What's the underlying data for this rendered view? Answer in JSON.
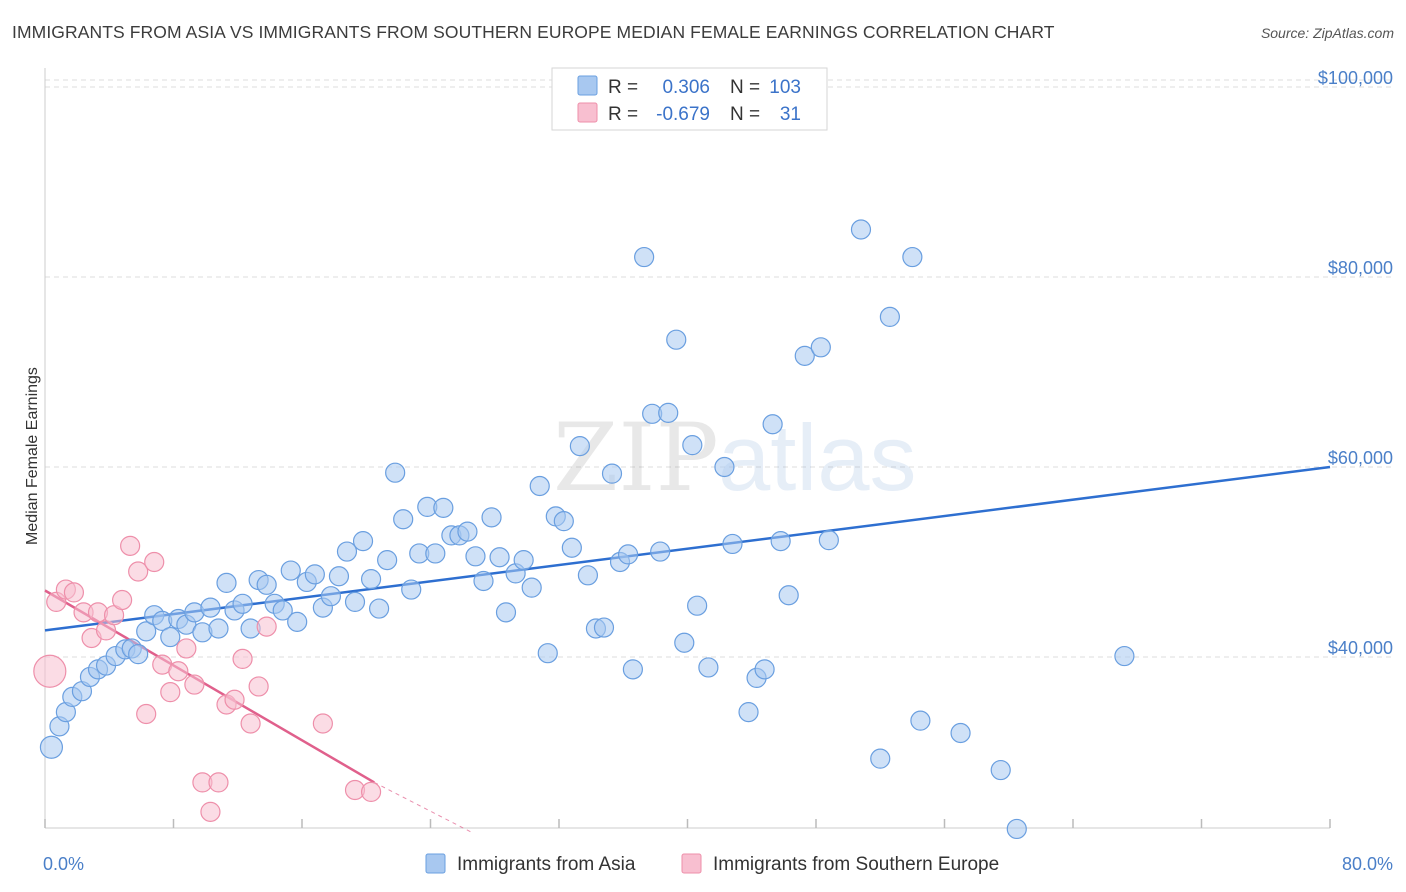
{
  "title": "IMMIGRANTS FROM ASIA VS IMMIGRANTS FROM SOUTHERN EUROPE MEDIAN FEMALE EARNINGS CORRELATION CHART",
  "source": "Source: ZipAtlas.com",
  "watermark": {
    "part1": "ZIP",
    "part2": "atlas"
  },
  "colors": {
    "asia_fill": "#a8c8f0",
    "asia_stroke": "#6a9fe0",
    "asia_line": "#2e6fd0",
    "europe_fill": "#f8bfd0",
    "europe_stroke": "#ee8faa",
    "europe_line": "#e0608c",
    "label_blue": "#4a7fc8",
    "grid": "#dddddd"
  },
  "legend": {
    "items": [
      {
        "r_label": "R =",
        "r_value": "0.306",
        "n_label": "N =",
        "n_value": "103"
      },
      {
        "r_label": "R =",
        "r_value": "-0.679",
        "n_label": "N =",
        "n_value": "31"
      }
    ]
  },
  "chart_data": {
    "type": "scatter",
    "title": "IMMIGRANTS FROM ASIA VS IMMIGRANTS FROM SOUTHERN EUROPE MEDIAN FEMALE EARNINGS CORRELATION CHART",
    "xlabel": "",
    "ylabel": "Median Female Earnings",
    "xlim": [
      0,
      80
    ],
    "ylim": [
      22000,
      102000
    ],
    "x_tick_labels": [
      "0.0%",
      "80.0%"
    ],
    "y_ticks": [
      40000,
      60000,
      80000,
      100000
    ],
    "y_tick_labels": [
      "$40,000",
      "$60,000",
      "$80,000",
      "$100,000"
    ],
    "grid": true,
    "series": [
      {
        "name": "Immigrants from Asia",
        "r": 0.306,
        "n": 103,
        "trend": {
          "x": [
            0,
            80
          ],
          "y": [
            42800,
            60000
          ]
        },
        "points": [
          [
            0.4,
            30500
          ],
          [
            0.9,
            32700
          ],
          [
            1.3,
            34200
          ],
          [
            1.7,
            35800
          ],
          [
            2.3,
            36400
          ],
          [
            2.8,
            37900
          ],
          [
            3.3,
            38700
          ],
          [
            3.8,
            39100
          ],
          [
            4.4,
            40100
          ],
          [
            5.0,
            40800
          ],
          [
            5.4,
            40900
          ],
          [
            5.8,
            40300
          ],
          [
            6.3,
            42700
          ],
          [
            6.8,
            44400
          ],
          [
            7.3,
            43800
          ],
          [
            7.8,
            42100
          ],
          [
            8.3,
            44000
          ],
          [
            8.8,
            43400
          ],
          [
            9.3,
            44700
          ],
          [
            9.8,
            42600
          ],
          [
            10.3,
            45200
          ],
          [
            10.8,
            43000
          ],
          [
            11.3,
            47800
          ],
          [
            11.8,
            44900
          ],
          [
            12.3,
            45600
          ],
          [
            12.8,
            43000
          ],
          [
            13.3,
            48100
          ],
          [
            13.8,
            47600
          ],
          [
            14.3,
            45600
          ],
          [
            14.8,
            44900
          ],
          [
            15.3,
            49100
          ],
          [
            15.7,
            43700
          ],
          [
            16.3,
            47900
          ],
          [
            16.8,
            48700
          ],
          [
            17.3,
            45200
          ],
          [
            17.8,
            46400
          ],
          [
            18.3,
            48500
          ],
          [
            18.8,
            51100
          ],
          [
            19.3,
            45800
          ],
          [
            19.8,
            52200
          ],
          [
            20.3,
            48200
          ],
          [
            20.8,
            45100
          ],
          [
            21.3,
            50200
          ],
          [
            21.8,
            59400
          ],
          [
            22.3,
            54500
          ],
          [
            22.8,
            47100
          ],
          [
            23.3,
            50900
          ],
          [
            23.8,
            55800
          ],
          [
            24.3,
            50900
          ],
          [
            24.8,
            55700
          ],
          [
            25.3,
            52800
          ],
          [
            25.8,
            52800
          ],
          [
            26.3,
            53200
          ],
          [
            26.8,
            50600
          ],
          [
            27.3,
            48000
          ],
          [
            27.8,
            54700
          ],
          [
            28.3,
            50500
          ],
          [
            28.7,
            44700
          ],
          [
            29.3,
            48800
          ],
          [
            29.8,
            50200
          ],
          [
            30.3,
            47300
          ],
          [
            30.8,
            58000
          ],
          [
            31.3,
            40400
          ],
          [
            31.8,
            54800
          ],
          [
            32.3,
            54300
          ],
          [
            32.8,
            51500
          ],
          [
            33.3,
            62200
          ],
          [
            33.8,
            48600
          ],
          [
            34.3,
            43000
          ],
          [
            34.8,
            43100
          ],
          [
            35.3,
            59300
          ],
          [
            35.8,
            50000
          ],
          [
            36.3,
            50800
          ],
          [
            36.6,
            38700
          ],
          [
            37.3,
            82100
          ],
          [
            37.8,
            65600
          ],
          [
            38.3,
            51100
          ],
          [
            38.8,
            65700
          ],
          [
            39.3,
            73400
          ],
          [
            39.8,
            41500
          ],
          [
            40.3,
            62300
          ],
          [
            40.6,
            45400
          ],
          [
            41.3,
            38900
          ],
          [
            42.3,
            60000
          ],
          [
            42.8,
            51900
          ],
          [
            43.8,
            34200
          ],
          [
            44.3,
            37800
          ],
          [
            44.8,
            38700
          ],
          [
            45.3,
            64500
          ],
          [
            45.8,
            52200
          ],
          [
            46.3,
            46500
          ],
          [
            47.3,
            71700
          ],
          [
            48.3,
            72600
          ],
          [
            48.8,
            52300
          ],
          [
            50.8,
            85000
          ],
          [
            52.0,
            29300
          ],
          [
            52.6,
            75800
          ],
          [
            54.0,
            82100
          ],
          [
            54.5,
            33300
          ],
          [
            57.0,
            32000
          ],
          [
            59.5,
            28100
          ],
          [
            60.5,
            21900
          ],
          [
            67.2,
            40100
          ]
        ]
      },
      {
        "name": "Immigrants from Southern Europe",
        "r": -0.679,
        "n": 31,
        "trend": {
          "x": [
            0,
            20.5
          ],
          "y": [
            47000,
            26800
          ]
        },
        "trend_dashed": {
          "x": [
            20.5,
            26.5
          ],
          "y": [
            26800,
            21600
          ]
        },
        "points": [
          [
            0.3,
            38500
          ],
          [
            0.7,
            45800
          ],
          [
            1.3,
            47100
          ],
          [
            1.8,
            46800
          ],
          [
            2.4,
            44700
          ],
          [
            2.9,
            42000
          ],
          [
            3.3,
            44700
          ],
          [
            3.8,
            42800
          ],
          [
            4.3,
            44400
          ],
          [
            4.8,
            46000
          ],
          [
            5.3,
            51700
          ],
          [
            5.8,
            49000
          ],
          [
            6.3,
            34000
          ],
          [
            6.8,
            50000
          ],
          [
            7.3,
            39200
          ],
          [
            7.8,
            36300
          ],
          [
            8.3,
            38500
          ],
          [
            8.8,
            40900
          ],
          [
            9.3,
            37100
          ],
          [
            9.8,
            26800
          ],
          [
            10.3,
            23700
          ],
          [
            10.8,
            26800
          ],
          [
            11.3,
            35000
          ],
          [
            11.8,
            35500
          ],
          [
            12.3,
            39800
          ],
          [
            12.8,
            33000
          ],
          [
            13.3,
            36900
          ],
          [
            13.8,
            43200
          ],
          [
            17.3,
            33000
          ],
          [
            19.3,
            26000
          ],
          [
            20.3,
            25800
          ]
        ]
      }
    ],
    "annotations": [
      "ZIPatlas watermark"
    ]
  }
}
